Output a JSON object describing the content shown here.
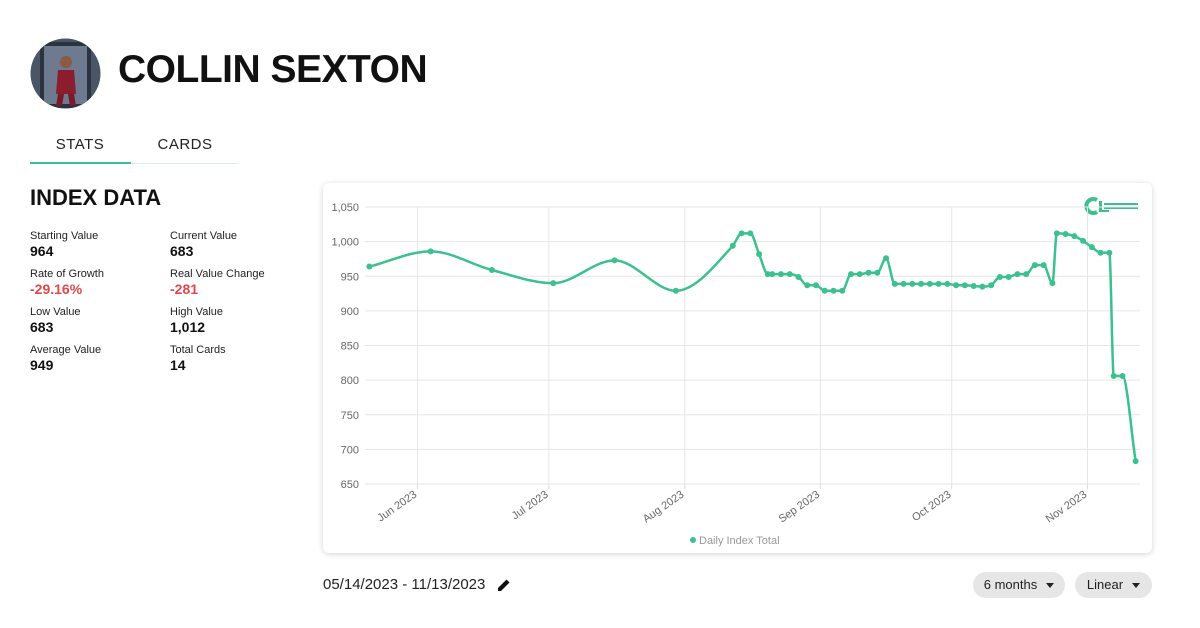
{
  "header": {
    "name": "COLLIN SEXTON"
  },
  "tabs": [
    "STATS",
    "CARDS"
  ],
  "stats": {
    "title": "INDEX DATA",
    "items": [
      {
        "label": "Starting Value",
        "value": "964"
      },
      {
        "label": "Current Value",
        "value": "683"
      },
      {
        "label": "Rate of Growth",
        "value": "-29.16%"
      },
      {
        "label": "Real Value Change",
        "value": "-281"
      },
      {
        "label": "Low Value",
        "value": "683"
      },
      {
        "label": "High Value",
        "value": "1,012"
      },
      {
        "label": "Average Value",
        "value": "949"
      },
      {
        "label": "Total Cards",
        "value": "14"
      }
    ]
  },
  "chart_data": {
    "type": "line",
    "x": [
      "2023-05-21",
      "2023-06-04",
      "2023-06-18",
      "2023-07-02",
      "2023-07-16",
      "2023-07-30",
      "2023-08-12",
      "2023-08-14",
      "2023-08-16",
      "2023-08-18",
      "2023-08-20",
      "2023-08-21",
      "2023-08-23",
      "2023-08-25",
      "2023-08-27",
      "2023-08-29",
      "2023-08-31",
      "2023-09-02",
      "2023-09-04",
      "2023-09-06",
      "2023-09-08",
      "2023-09-10",
      "2023-09-12",
      "2023-09-14",
      "2023-09-16",
      "2023-09-18",
      "2023-09-20",
      "2023-09-22",
      "2023-09-24",
      "2023-09-26",
      "2023-09-28",
      "2023-09-30",
      "2023-10-02",
      "2023-10-04",
      "2023-10-06",
      "2023-10-08",
      "2023-10-10",
      "2023-10-12",
      "2023-10-14",
      "2023-10-16",
      "2023-10-18",
      "2023-10-20",
      "2023-10-22",
      "2023-10-24",
      "2023-10-25",
      "2023-10-27",
      "2023-10-29",
      "2023-10-31",
      "2023-11-02",
      "2023-11-04",
      "2023-11-06",
      "2023-11-07",
      "2023-11-09",
      "2023-11-12"
    ],
    "series": [
      {
        "name": "Daily Index Total",
        "color": "#3cc08f",
        "values": [
          964,
          986,
          959,
          940,
          973,
          929,
          994,
          1012,
          1012,
          982,
          953,
          953,
          953,
          953,
          949,
          937,
          937,
          929,
          929,
          929,
          953,
          953,
          955,
          955,
          976,
          939,
          939,
          939,
          939,
          939,
          939,
          939,
          937,
          937,
          936,
          935,
          937,
          949,
          949,
          953,
          953,
          966,
          966,
          940,
          1012,
          1011,
          1008,
          1001,
          992,
          984,
          984,
          806,
          806,
          683
        ]
      }
    ],
    "xlim": [
      "2023-05-20",
      "2023-11-13"
    ],
    "xticks": [
      {
        "value": "2023-06-01",
        "label": "Jun 2023"
      },
      {
        "value": "2023-07-01",
        "label": "Jul 2023"
      },
      {
        "value": "2023-08-01",
        "label": "Aug 2023"
      },
      {
        "value": "2023-09-01",
        "label": "Sep 2023"
      },
      {
        "value": "2023-10-01",
        "label": "Oct 2023"
      },
      {
        "value": "2023-11-01",
        "label": "Nov 2023"
      }
    ],
    "ylim": [
      650,
      1050
    ],
    "yticks": [
      650,
      700,
      750,
      800,
      850,
      900,
      950,
      {
        "value": 1000,
        "label": "1,000"
      },
      {
        "value": 1050,
        "label": "1,050"
      }
    ],
    "grid": true,
    "legend": "bottom"
  },
  "date_range": "05/14/2023 - 11/13/2023",
  "controls": [
    "6 months",
    "Linear"
  ]
}
